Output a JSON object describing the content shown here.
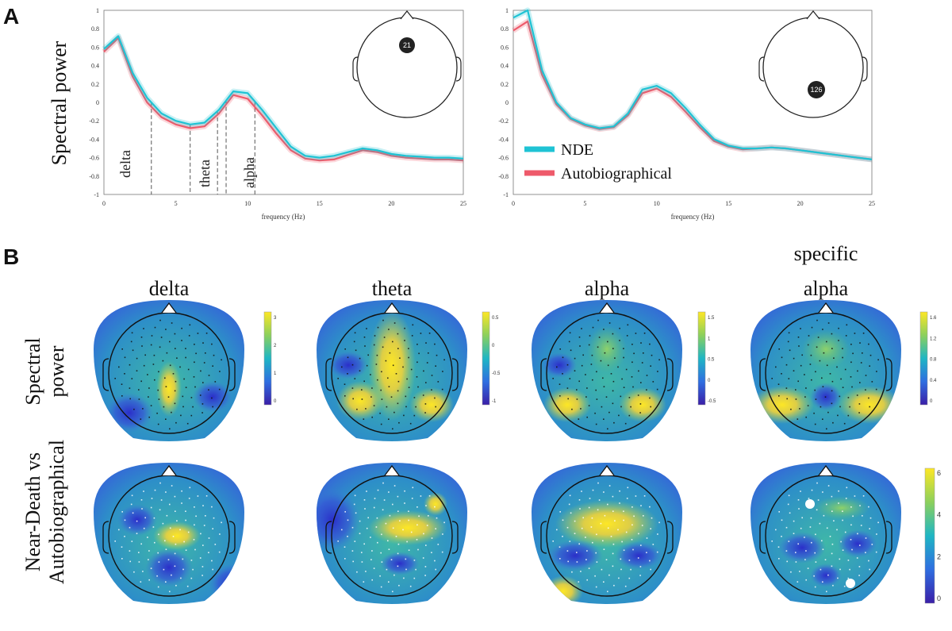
{
  "panels": {
    "a": "A",
    "b": "B"
  },
  "colors": {
    "nde": "#1fc3d4",
    "auto": "#ee5a6a"
  },
  "chart_data": [
    {
      "type": "line",
      "panel": "A",
      "ylabel": "Spectral power",
      "xlabel": "frequency (Hz)",
      "xlim": [
        0,
        25
      ],
      "ylim": [
        -1,
        1
      ],
      "xticks": [
        0,
        5,
        10,
        15,
        20,
        25
      ],
      "yticks": [
        "1",
        "0.8",
        "0.6",
        "0.4",
        "0.2",
        "0",
        "-0.2",
        "-0.4",
        "-0.6",
        "-0.8",
        "-1"
      ],
      "electrode": "21",
      "bands": [
        {
          "label": "delta",
          "range": [
            3.3,
            6.0
          ]
        },
        {
          "label": "theta",
          "range": [
            6.0,
            7.9
          ]
        },
        {
          "label": "alpha",
          "range": [
            8.5,
            10.5
          ]
        }
      ],
      "x": [
        0,
        1,
        2,
        3,
        4,
        5,
        6,
        7,
        8,
        9,
        10,
        11,
        12,
        13,
        14,
        15,
        16,
        17,
        18,
        19,
        20,
        21,
        22,
        23,
        24,
        25
      ],
      "series": [
        {
          "name": "NDE",
          "values": [
            0.58,
            0.72,
            0.32,
            0.05,
            -0.12,
            -0.2,
            -0.24,
            -0.22,
            -0.08,
            0.12,
            0.1,
            -0.08,
            -0.28,
            -0.48,
            -0.58,
            -0.6,
            -0.58,
            -0.54,
            -0.5,
            -0.52,
            -0.56,
            -0.58,
            -0.59,
            -0.6,
            -0.6,
            -0.61
          ]
        },
        {
          "name": "Autobiographical",
          "values": [
            0.55,
            0.7,
            0.28,
            0.0,
            -0.16,
            -0.24,
            -0.28,
            -0.26,
            -0.12,
            0.08,
            0.04,
            -0.14,
            -0.34,
            -0.52,
            -0.61,
            -0.63,
            -0.62,
            -0.57,
            -0.52,
            -0.54,
            -0.58,
            -0.6,
            -0.61,
            -0.62,
            -0.62,
            -0.63
          ]
        }
      ]
    },
    {
      "type": "line",
      "panel": "A",
      "xlabel": "frequency (Hz)",
      "xlim": [
        0,
        25
      ],
      "ylim": [
        -1,
        1
      ],
      "xticks": [
        0,
        5,
        10,
        15,
        20,
        25
      ],
      "yticks": [
        "1",
        "0.8",
        "0.6",
        "0.4",
        "0.2",
        "0",
        "-0.2",
        "-0.4",
        "-0.6",
        "-0.8",
        "-1"
      ],
      "electrode": "126",
      "legend": [
        "NDE",
        "Autobiographical"
      ],
      "x": [
        0,
        1,
        2,
        3,
        4,
        5,
        6,
        7,
        8,
        9,
        10,
        11,
        12,
        13,
        14,
        15,
        16,
        17,
        18,
        19,
        20,
        21,
        22,
        23,
        24,
        25
      ],
      "series": [
        {
          "name": "NDE",
          "values": [
            0.92,
            1.0,
            0.35,
            0.0,
            -0.17,
            -0.24,
            -0.28,
            -0.26,
            -0.12,
            0.14,
            0.18,
            0.1,
            -0.06,
            -0.24,
            -0.4,
            -0.47,
            -0.5,
            -0.5,
            -0.49,
            -0.5,
            -0.52,
            -0.54,
            -0.56,
            -0.58,
            -0.6,
            -0.62
          ]
        },
        {
          "name": "Autobiographical",
          "values": [
            0.78,
            0.88,
            0.3,
            -0.02,
            -0.18,
            -0.25,
            -0.29,
            -0.27,
            -0.14,
            0.1,
            0.15,
            0.06,
            -0.1,
            -0.27,
            -0.42,
            -0.48,
            -0.51,
            -0.5,
            -0.49,
            -0.5,
            -0.52,
            -0.54,
            -0.56,
            -0.58,
            -0.6,
            -0.62
          ]
        }
      ]
    },
    {
      "type": "heatmap",
      "panel": "B",
      "columns": [
        "delta",
        "theta",
        "alpha",
        "specific alpha"
      ],
      "rows": [
        "Spectral power",
        "Near-Death vs Autobiographical"
      ],
      "colorbars": [
        [
          "3",
          "2",
          "1",
          "0"
        ],
        [
          "0.5",
          "0",
          "-0.5",
          "-1"
        ],
        [
          "1.5",
          "1",
          "0.5",
          "0",
          "-0.5"
        ],
        [
          "1.6",
          "1.2",
          "0.8",
          "0.4",
          "0"
        ],
        [
          "6",
          "4",
          "2",
          "0"
        ]
      ]
    }
  ]
}
